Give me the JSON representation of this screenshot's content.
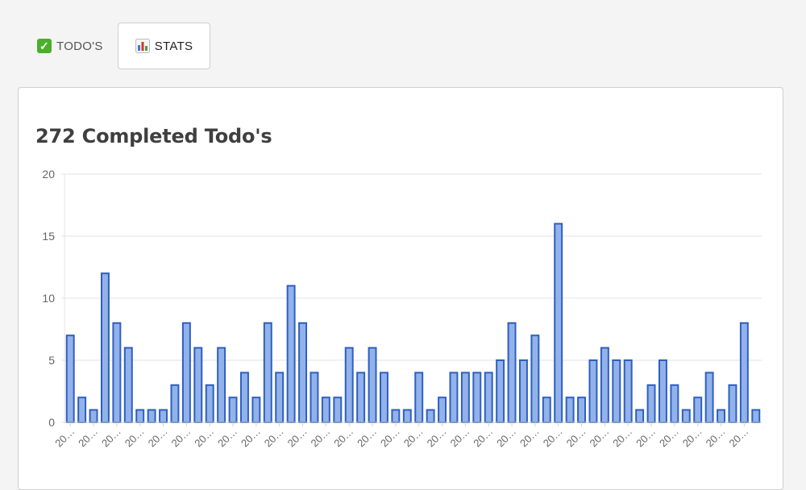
{
  "tabs": [
    {
      "label": "TODO'S",
      "icon": "check-mark-icon",
      "active": false
    },
    {
      "label": "STATS",
      "icon": "bar-chart-icon",
      "active": true
    }
  ],
  "colors": {
    "bar_fill": "#92b2ea",
    "bar_stroke": "#2f5fbf",
    "grid": "#e3e3e3",
    "check_green": "#4caf2c"
  },
  "card": {
    "title": "272 Completed Todo's"
  },
  "chart_data": {
    "type": "bar",
    "title": "272 Completed Todo's",
    "xlabel": "",
    "ylabel": "",
    "ylim": [
      0,
      20
    ],
    "yticks": [
      "0",
      "5",
      "10",
      "15",
      "20"
    ],
    "grid": true,
    "category_label": "20…",
    "values": [
      7,
      2,
      1,
      12,
      8,
      6,
      1,
      1,
      1,
      3,
      8,
      6,
      3,
      6,
      2,
      4,
      2,
      8,
      4,
      11,
      8,
      4,
      2,
      2,
      6,
      4,
      6,
      4,
      1,
      1,
      4,
      1,
      2,
      4,
      4,
      4,
      4,
      5,
      8,
      5,
      7,
      2,
      16,
      2,
      2,
      5,
      6,
      5,
      5,
      1,
      3,
      5,
      3,
      1,
      2,
      4,
      1,
      3,
      8,
      1
    ]
  }
}
